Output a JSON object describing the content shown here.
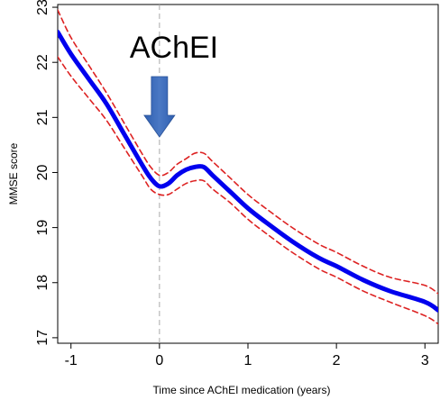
{
  "chart_data": {
    "type": "line",
    "title": "",
    "xlabel": "Time since AChEI medication (years)",
    "ylabel": "MMSE score",
    "xlim": [
      -1.15,
      3.15
    ],
    "ylim": [
      16.9,
      23.05
    ],
    "x_ticks": [
      -1,
      0,
      1,
      2,
      3
    ],
    "x_tick_labels": [
      "-1",
      "0",
      "1",
      "2",
      "3"
    ],
    "y_ticks": [
      17,
      18,
      19,
      20,
      21,
      22,
      23
    ],
    "y_tick_labels": [
      "17",
      "18",
      "19",
      "20",
      "21",
      "22",
      "23"
    ],
    "grid": false,
    "legend": "none",
    "reference_line": {
      "x": 0,
      "style": "dashed",
      "color": "#aaaaaa"
    },
    "annotation": {
      "text": "AChEI",
      "points_to_x": 0,
      "points_to_y": 20.3,
      "arrow_color": "#4a78c4"
    },
    "series": [
      {
        "role": "estimate",
        "color": "#0000ee",
        "style": "solid",
        "x": [
          -1.15,
          -1.0,
          -0.8,
          -0.6,
          -0.4,
          -0.2,
          -0.1,
          0.0,
          0.1,
          0.2,
          0.3,
          0.4,
          0.5,
          0.6,
          0.8,
          1.0,
          1.2,
          1.5,
          1.8,
          2.0,
          2.3,
          2.6,
          3.0,
          3.15
        ],
        "y": [
          22.55,
          22.15,
          21.7,
          21.25,
          20.7,
          20.15,
          19.9,
          19.75,
          19.8,
          19.95,
          20.05,
          20.1,
          20.1,
          19.95,
          19.65,
          19.35,
          19.1,
          18.75,
          18.45,
          18.3,
          18.05,
          17.85,
          17.65,
          17.5
        ]
      },
      {
        "role": "upper_ci",
        "color": "#dd2222",
        "style": "dashed",
        "x": [
          -1.15,
          -1.0,
          -0.8,
          -0.6,
          -0.4,
          -0.2,
          -0.1,
          0.0,
          0.1,
          0.2,
          0.3,
          0.4,
          0.5,
          0.6,
          0.8,
          1.0,
          1.2,
          1.5,
          1.8,
          2.0,
          2.3,
          2.6,
          3.0,
          3.15
        ],
        "y": [
          22.95,
          22.45,
          21.95,
          21.45,
          20.9,
          20.35,
          20.1,
          19.95,
          20.0,
          20.15,
          20.25,
          20.35,
          20.35,
          20.2,
          19.9,
          19.6,
          19.35,
          19.0,
          18.7,
          18.55,
          18.3,
          18.1,
          17.95,
          17.8
        ]
      },
      {
        "role": "lower_ci",
        "color": "#dd2222",
        "style": "dashed",
        "x": [
          -1.15,
          -1.0,
          -0.8,
          -0.6,
          -0.4,
          -0.2,
          -0.1,
          0.0,
          0.1,
          0.2,
          0.3,
          0.4,
          0.5,
          0.6,
          0.8,
          1.0,
          1.2,
          1.5,
          1.8,
          2.0,
          2.3,
          2.6,
          3.0,
          3.15
        ],
        "y": [
          22.1,
          21.75,
          21.35,
          20.95,
          20.45,
          19.95,
          19.7,
          19.6,
          19.6,
          19.7,
          19.8,
          19.85,
          19.85,
          19.7,
          19.45,
          19.15,
          18.9,
          18.55,
          18.25,
          18.1,
          17.85,
          17.65,
          17.4,
          17.25
        ]
      }
    ]
  }
}
